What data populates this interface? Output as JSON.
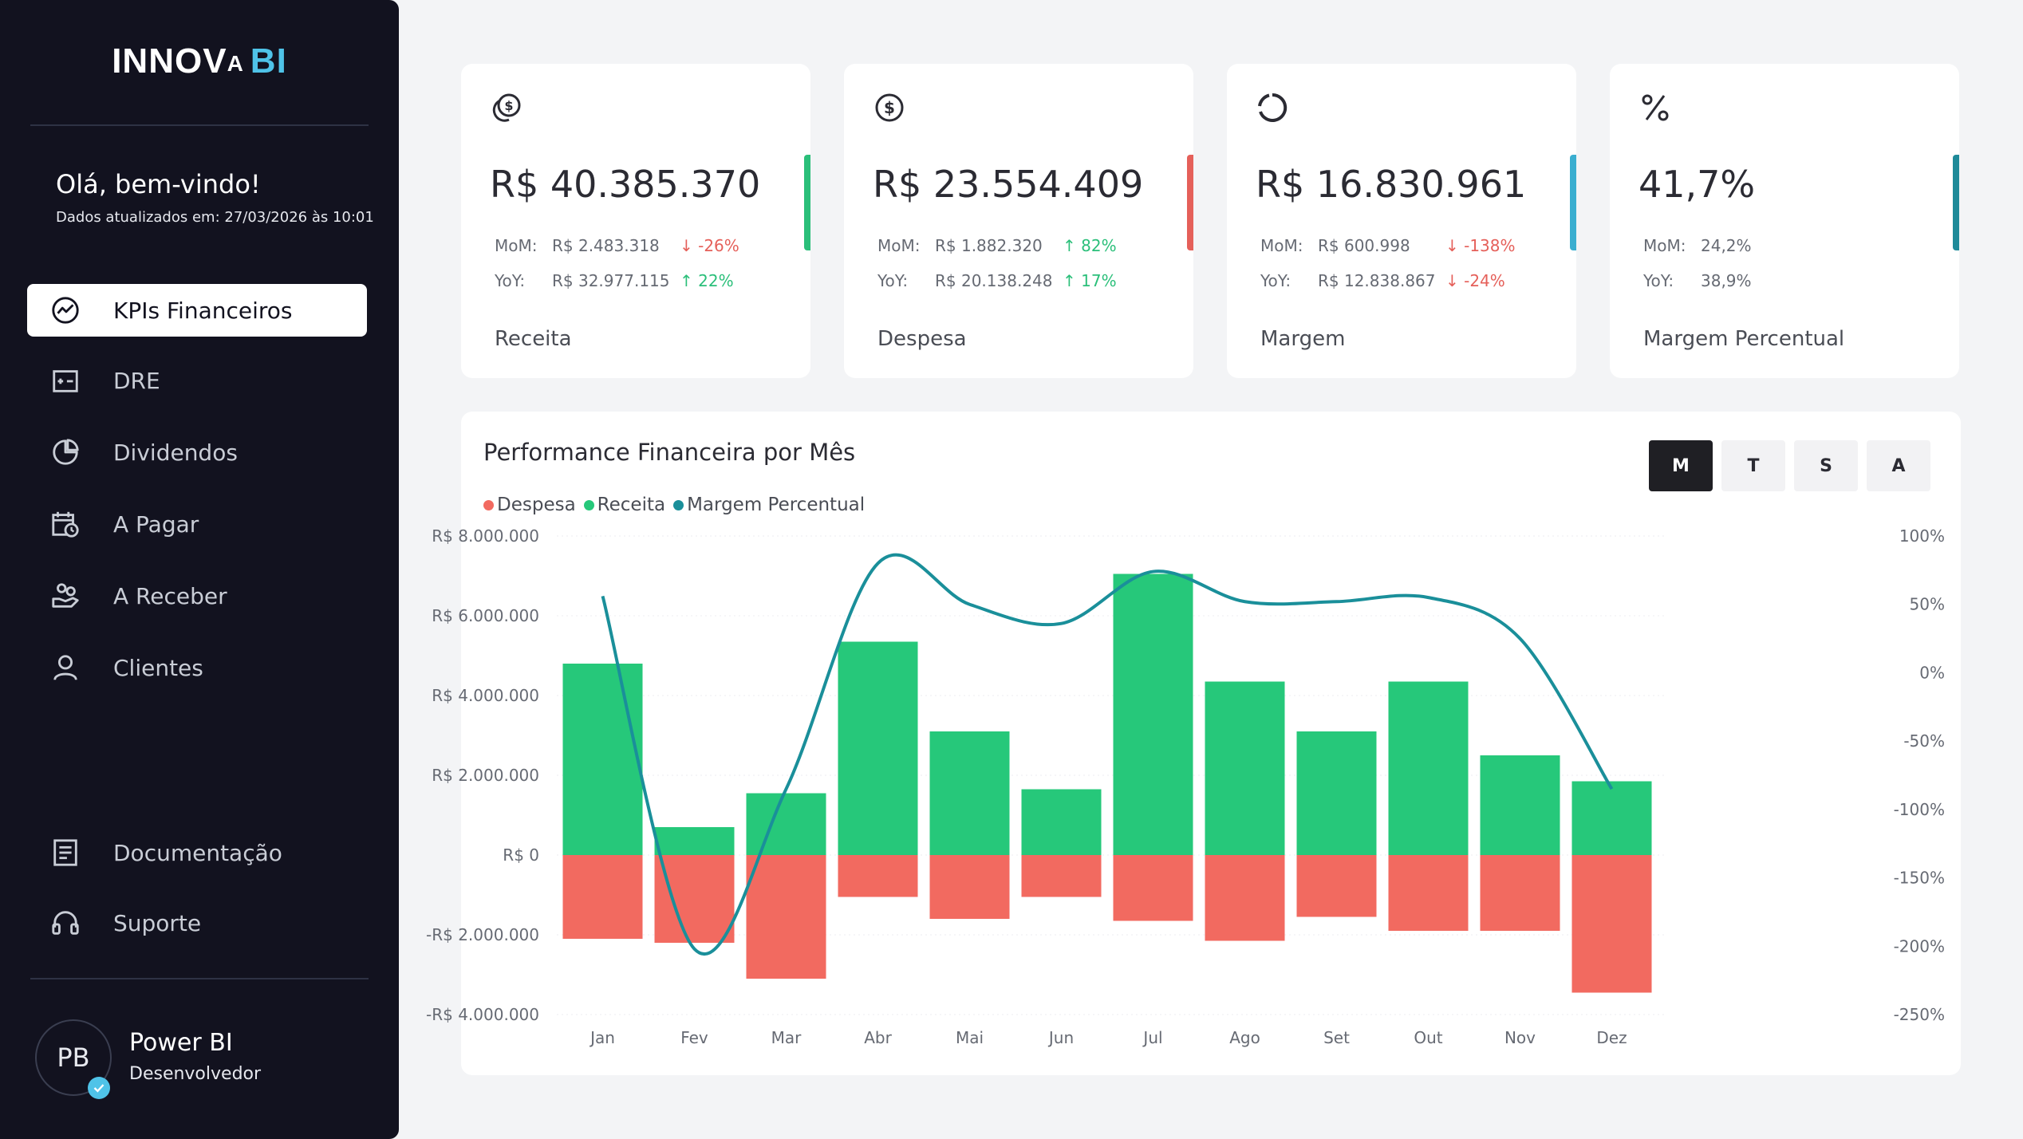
{
  "sidebar": {
    "logo_main": "INNOV",
    "logo_mark": "A",
    "logo_bi": "BI",
    "welcome": "Olá, bem-vindo!",
    "updated": "Dados atualizados em: 27/03/2026 às 10:01",
    "nav": [
      {
        "label": "KPIs Financeiros",
        "icon": "trend-icon",
        "active": true
      },
      {
        "label": "DRE",
        "icon": "ledger-icon"
      },
      {
        "label": "Dividendos",
        "icon": "pie-icon"
      },
      {
        "label": "A Pagar",
        "icon": "calendar-clock-icon"
      },
      {
        "label": "A Receber",
        "icon": "hand-coins-icon"
      },
      {
        "label": "Clientes",
        "icon": "user-icon"
      }
    ],
    "bottom_nav": [
      {
        "label": "Documentação",
        "icon": "document-icon"
      },
      {
        "label": "Suporte",
        "icon": "headset-icon"
      }
    ],
    "user": {
      "initials": "PB",
      "name": "Power BI",
      "role": "Desenvolvedor"
    }
  },
  "kpis": [
    {
      "value": "R$ 40.385.370",
      "mom_label": "MoM:",
      "mom_value": "R$ 2.483.318",
      "mom_change": "↓ -26%",
      "mom_dir": "down",
      "yoy_label": "YoY:",
      "yoy_value": "R$ 32.977.115",
      "yoy_change": "↑ 22%",
      "yoy_dir": "up",
      "label": "Receita",
      "icon": "coin-stack-icon",
      "accent": "#2bbf7a"
    },
    {
      "value": "R$ 23.554.409",
      "mom_label": "MoM:",
      "mom_value": "R$ 1.882.320",
      "mom_change": "↑ 82%",
      "mom_dir": "up",
      "yoy_label": "YoY:",
      "yoy_value": "R$ 20.138.248",
      "yoy_change": "↑ 17%",
      "yoy_dir": "up",
      "label": "Despesa",
      "icon": "dollar-circle-icon",
      "accent": "#e5605a"
    },
    {
      "value": "R$ 16.830.961",
      "mom_label": "MoM:",
      "mom_value": "R$ 600.998",
      "mom_change": "↓ -138%",
      "mom_dir": "down",
      "yoy_label": "YoY:",
      "yoy_value": "R$ 12.838.867",
      "yoy_change": "↓ -24%",
      "yoy_dir": "down",
      "label": "Margem",
      "icon": "ring-chart-icon",
      "accent": "#3aaed0"
    },
    {
      "value": "41,7%",
      "mom_label": "MoM:",
      "mom_value": "24,2%",
      "mom_change": "",
      "mom_dir": "",
      "yoy_label": "YoY:",
      "yoy_value": "38,9%",
      "yoy_change": "",
      "yoy_dir": "",
      "label": "Margem Percentual",
      "icon": "percent-icon",
      "accent": "#1e8a99"
    }
  ],
  "chart_panel": {
    "title": "Performance Financeira por Mês",
    "periods": [
      "M",
      "T",
      "S",
      "A"
    ],
    "active_period": "M"
  },
  "colors": {
    "receita": "#26c87a",
    "despesa": "#f26a60",
    "margem": "#1a8f9a"
  },
  "chart_data": {
    "type": "bar",
    "title": "Performance Financeira por Mês",
    "categories": [
      "Jan",
      "Fev",
      "Mar",
      "Abr",
      "Mai",
      "Jun",
      "Jul",
      "Ago",
      "Set",
      "Out",
      "Nov",
      "Dez"
    ],
    "series": [
      {
        "name": "Despesa",
        "type": "bar",
        "axis": "left",
        "values": [
          -2100000,
          -2200000,
          -3100000,
          -1050000,
          -1600000,
          -1050000,
          -1650000,
          -2150000,
          -1550000,
          -1900000,
          -1900000,
          -3450000
        ]
      },
      {
        "name": "Receita",
        "type": "bar",
        "axis": "left",
        "values": [
          4800000,
          700000,
          1550000,
          5350000,
          3100000,
          1650000,
          7050000,
          4350000,
          3100000,
          4350000,
          2500000,
          1850000
        ]
      },
      {
        "name": "Margem Percentual",
        "type": "line",
        "axis": "right",
        "values": [
          56,
          -202,
          -85,
          80,
          50,
          36,
          74,
          52,
          52,
          55,
          25,
          -85
        ]
      }
    ],
    "y_left": {
      "ticks": [
        "R$ 8.000.000",
        "R$ 6.000.000",
        "R$ 4.000.000",
        "R$ 2.000.000",
        "R$ 0",
        "-R$ 2.000.000",
        "-R$ 4.000.000"
      ],
      "min": -4000000,
      "max": 8000000
    },
    "y_right": {
      "ticks": [
        "100%",
        "50%",
        "0%",
        "-50%",
        "-100%",
        "-150%",
        "-200%",
        "-250%"
      ],
      "min": -250,
      "max": 100
    },
    "legend": [
      "Despesa",
      "Receita",
      "Margem Percentual"
    ],
    "legend_position": "top-left"
  }
}
